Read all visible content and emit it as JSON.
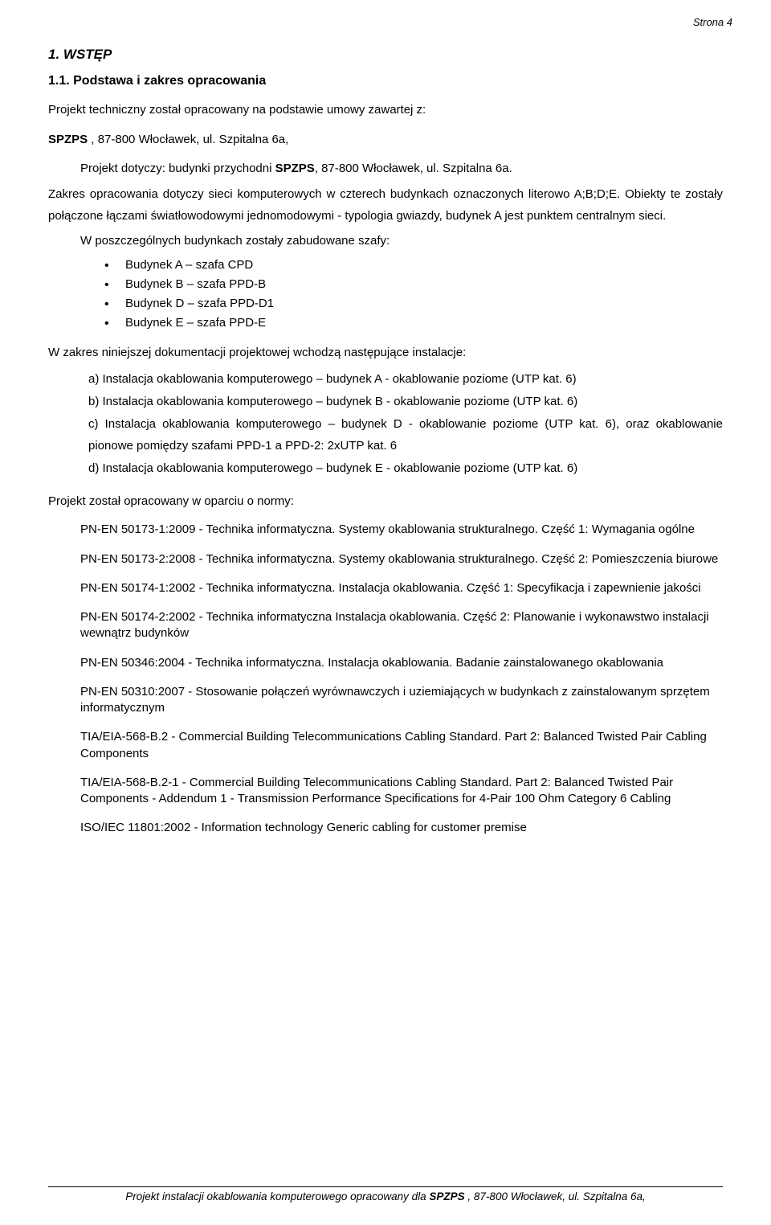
{
  "page_number": "Strona  4",
  "h1": "1. WSTĘP",
  "h2": "1.1. Podstawa i zakres opracowania",
  "intro1": "Projekt techniczny został opracowany na podstawie umowy zawartej z:",
  "org_bold": "SPZPS",
  "org_rest": " , 87-800 Włocławek, ul. Szpitalna 6a,",
  "intro2_a": "Projekt dotyczy: budynki przychodni ",
  "intro2_bold": "SPZPS",
  "intro2_b": ", 87-800 Włocławek, ul. Szpitalna 6a.",
  "para2": "Zakres opracowania dotyczy sieci komputerowych w czterech budynkach oznaczonych literowo A;B;D;E. Obiekty te zostały połączone łączami światłowodowymi jednomodowymi - typologia gwiazdy, budynek  A jest punktem  centralnym sieci.",
  "para3": "W poszczególnych budynkach zostały zabudowane szafy:",
  "bullets": [
    "Budynek A – szafa CPD",
    "Budynek B – szafa PPD-B",
    "Budynek D – szafa PPD-D1",
    "Budynek E – szafa PPD-E"
  ],
  "para4": "W zakres niniejszej dokumentacji projektowej wchodzą następujące instalacje:",
  "letters": [
    "a)  Instalacja okablowania komputerowego – budynek A - okablowanie poziome (UTP kat. 6)",
    "b)  Instalacja okablowania komputerowego – budynek B - okablowanie poziome (UTP kat. 6)",
    "c)  Instalacja okablowania komputerowego – budynek D - okablowanie poziome (UTP kat. 6), oraz okablowanie pionowe pomiędzy szafami PPD-1 a PPD-2:  2xUTP kat. 6",
    "d)  Instalacja okablowania komputerowego – budynek E - okablowanie poziome (UTP kat. 6)"
  ],
  "para5": "Projekt został opracowany w oparciu o normy:",
  "norms": [
    "PN-EN 50173-1:2009 - Technika informatyczna. Systemy okablowania strukturalnego. Część 1: Wymagania ogólne",
    "PN-EN 50173-2:2008 - Technika informatyczna. Systemy okablowania strukturalnego. Część 2: Pomieszczenia biurowe",
    "PN-EN 50174-1:2002 - Technika informatyczna. Instalacja okablowania. Część 1: Specyfikacja i zapewnienie jakości",
    "PN-EN 50174-2:2002 - Technika informatyczna Instalacja okablowania. Część 2: Planowanie i wykonawstwo instalacji wewnątrz budynków",
    "PN-EN 50346:2004 - Technika informatyczna. Instalacja okablowania. Badanie zainstalowanego okablowania",
    "PN-EN 50310:2007 - Stosowanie połączeń wyrównawczych i uziemiających w budynkach z zainstalowanym sprzętem informatycznym",
    "TIA/EIA-568-B.2 - Commercial Building Telecommunications Cabling Standard. Part 2: Balanced Twisted Pair Cabling Components",
    "TIA/EIA-568-B.2-1 - Commercial Building Telecommunications Cabling Standard. Part 2: Balanced Twisted Pair Components - Addendum 1 - Transmission Performance Specifications for 4-Pair 100 Ohm Category 6 Cabling",
    "ISO/IEC 11801:2002 - Information technology Generic cabling for customer premise"
  ],
  "footer_a": "Projekt instalacji okablowania komputerowego opracowany dla ",
  "footer_bold": "SPZPS",
  "footer_b": " , 87-800 Włocławek, ul. Szpitalna 6a,"
}
